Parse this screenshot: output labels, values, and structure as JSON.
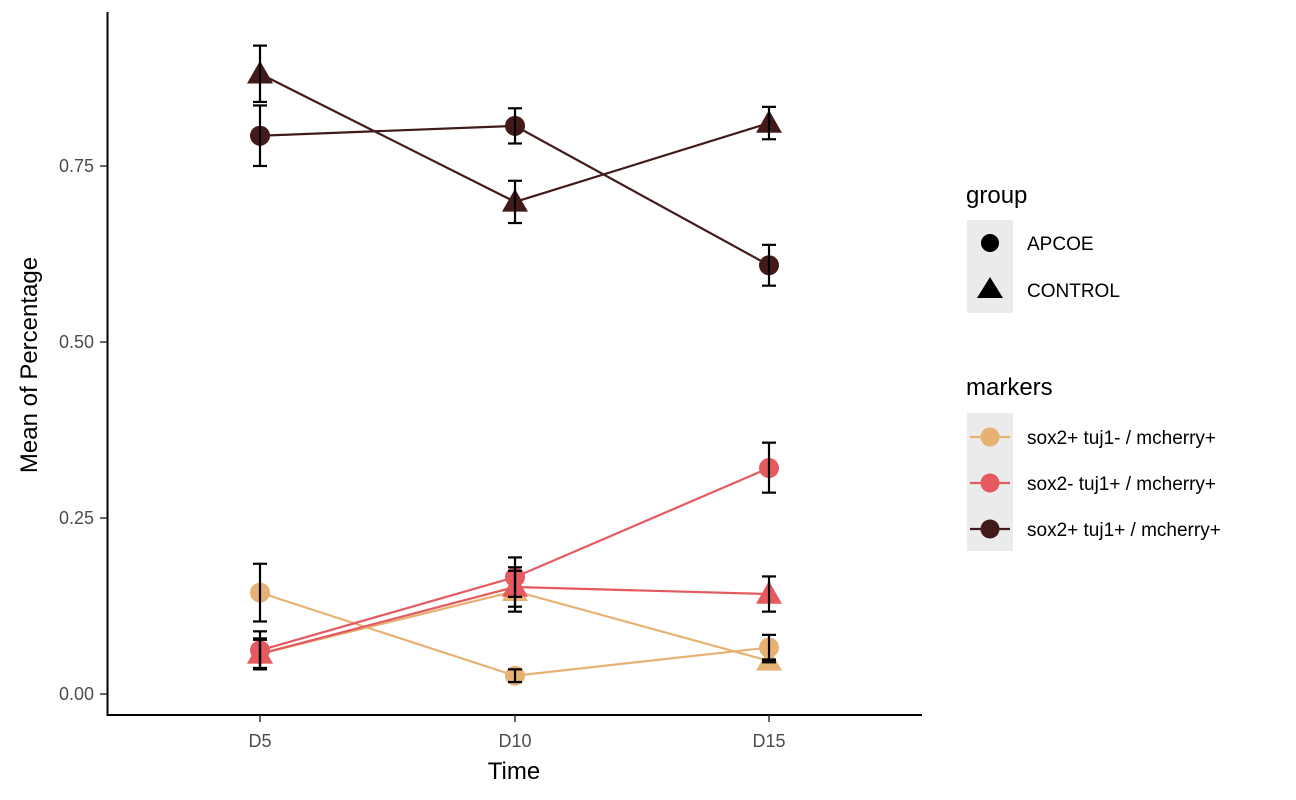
{
  "chart_data": {
    "type": "line",
    "title": "",
    "xlabel": "Time",
    "ylabel": "Mean of Percentage",
    "categories": [
      "D5",
      "D10",
      "D15"
    ],
    "ylim": [
      -0.03,
      0.97
    ],
    "yticks": [
      0.0,
      0.25,
      0.5,
      0.75
    ],
    "ytick_labels": [
      "0.00",
      "0.25",
      "0.50",
      "0.75"
    ],
    "grid": false,
    "legend_position": "right",
    "legends": {
      "group": {
        "title": "group",
        "items": [
          {
            "label": "APCOE",
            "shape": "circle"
          },
          {
            "label": "CONTROL",
            "shape": "triangle"
          }
        ]
      },
      "markers": {
        "title": "markers",
        "items": [
          {
            "label": "sox2+ tuj1- / mcherry+",
            "color": "#E6B173"
          },
          {
            "label": "sox2- tuj1+ / mcherry+",
            "color": "#E45A5F"
          },
          {
            "label": "sox2+ tuj1+ / mcherry+",
            "color": "#421A1A"
          }
        ]
      }
    },
    "series": [
      {
        "marker": "sox2+ tuj1- / mcherry+",
        "group": "APCOE",
        "color": "#E6B173",
        "shape": "circle",
        "values": [
          0.144,
          0.026,
          0.066
        ],
        "err_low": [
          0.103,
          0.017,
          0.048
        ],
        "err_high": [
          0.185,
          0.035,
          0.084
        ]
      },
      {
        "marker": "sox2+ tuj1- / mcherry+",
        "group": "CONTROL",
        "color": "#E6B173",
        "shape": "triangle",
        "values": [
          0.057,
          0.146,
          0.047
        ],
        "err_low": [
          0.035,
          0.117,
          0.045
        ],
        "err_high": [
          0.079,
          0.175,
          0.049
        ]
      },
      {
        "marker": "sox2- tuj1+ / mcherry+",
        "group": "APCOE",
        "color": "#E45A5F",
        "shape": "circle",
        "values": [
          0.062,
          0.166,
          0.321
        ],
        "err_low": [
          0.035,
          0.138,
          0.286
        ],
        "err_high": [
          0.089,
          0.194,
          0.357
        ]
      },
      {
        "marker": "sox2- tuj1+ / mcherry+",
        "group": "CONTROL",
        "color": "#E45A5F",
        "shape": "triangle",
        "values": [
          0.057,
          0.152,
          0.142
        ],
        "err_low": [
          0.037,
          0.124,
          0.117
        ],
        "err_high": [
          0.077,
          0.18,
          0.167
        ]
      },
      {
        "marker": "sox2+ tuj1+ / mcherry+",
        "group": "APCOE",
        "color": "#421A1A",
        "shape": "circle",
        "values": [
          0.793,
          0.807,
          0.609
        ],
        "err_low": [
          0.75,
          0.782,
          0.58
        ],
        "err_high": [
          0.836,
          0.832,
          0.638
        ]
      },
      {
        "marker": "sox2+ tuj1+ / mcherry+",
        "group": "CONTROL",
        "color": "#421A1A",
        "shape": "triangle",
        "values": [
          0.881,
          0.699,
          0.811
        ],
        "err_low": [
          0.841,
          0.669,
          0.788
        ],
        "err_high": [
          0.921,
          0.729,
          0.834
        ]
      }
    ]
  }
}
